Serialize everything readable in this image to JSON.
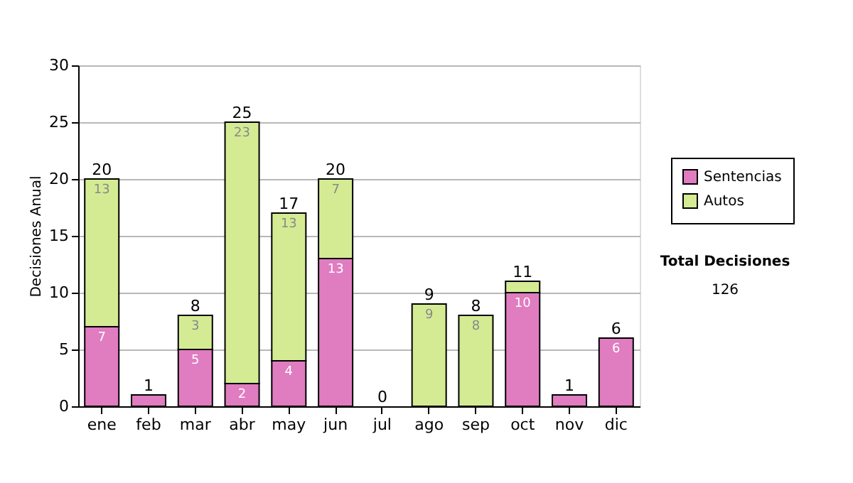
{
  "chart_data": {
    "type": "bar",
    "stacked": true,
    "ylabel": "Decisiones Anual",
    "categories": [
      "ene",
      "feb",
      "mar",
      "abr",
      "may",
      "jun",
      "jul",
      "ago",
      "sep",
      "oct",
      "nov",
      "dic"
    ],
    "series": [
      {
        "name": "Sentencias",
        "color": "#e07cc0",
        "values": [
          7,
          1,
          5,
          2,
          4,
          13,
          0,
          0,
          0,
          10,
          1,
          6
        ],
        "value_labels": [
          "7",
          null,
          "5",
          "2",
          "4",
          "13",
          null,
          null,
          null,
          "10",
          null,
          "6"
        ]
      },
      {
        "name": "Autos",
        "color": "#d4eb94",
        "values": [
          13,
          0,
          3,
          23,
          13,
          7,
          0,
          9,
          8,
          1,
          0,
          0
        ],
        "value_labels": [
          "13",
          null,
          "3",
          "23",
          "13",
          "7",
          null,
          "9",
          "8",
          null,
          null,
          null
        ]
      }
    ],
    "totals": [
      "20",
      "1",
      "8",
      "25",
      "17",
      "20",
      "0",
      "9",
      "8",
      "11",
      "1",
      "6"
    ],
    "ylim": [
      0,
      30
    ],
    "yticks": [
      0,
      5,
      10,
      15,
      20,
      25,
      30
    ],
    "grid": "y",
    "legend": "right",
    "annotations": [
      "Total Decisiones",
      "126"
    ]
  }
}
